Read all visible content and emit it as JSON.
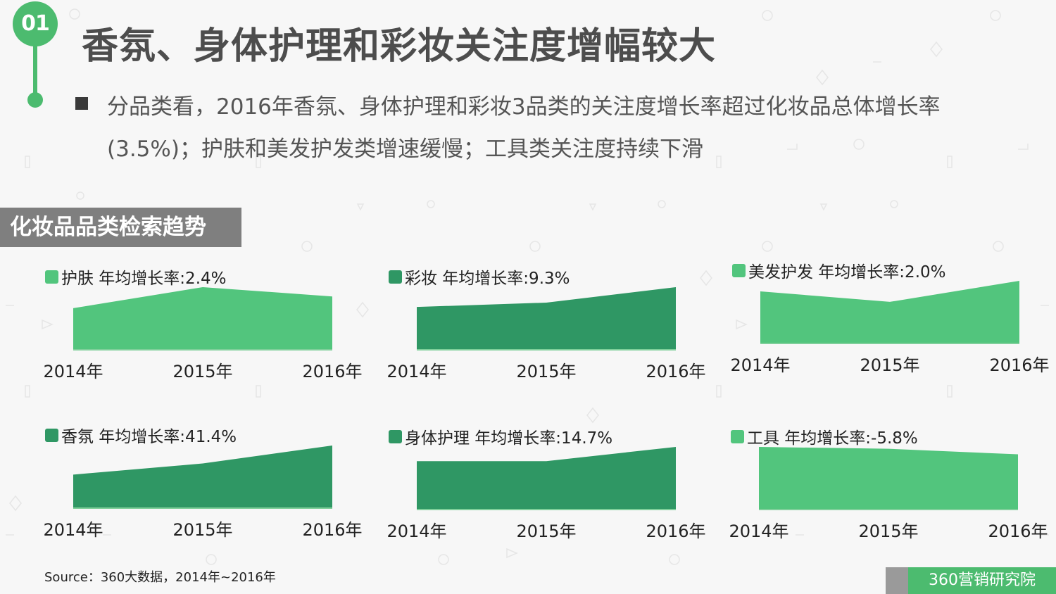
{
  "header": {
    "badge": "01",
    "title": "香氛、身体护理和彩妆关注度增幅较大",
    "description": "分品类看，2016年香氛、身体护理和彩妆3品类的关注度增长率超过化妆品总体增长率(3.5%)；护肤和美发护发类增速缓慢；工具类关注度持续下滑"
  },
  "section_title": "化妆品品类检索趋势",
  "footer": {
    "source": "Source：360大数据，2014年~2016年",
    "brand": "360营销研究院"
  },
  "colors": {
    "light_green": "#52c57d",
    "dark_green": "#2f9764",
    "accent": "#4cbb6f"
  },
  "chart_data": [
    {
      "type": "area",
      "legend": "护肤 年均增长率:2.4%",
      "categories": [
        "2014年",
        "2015年",
        "2016年"
      ],
      "values": [
        0.66,
        1.0,
        0.85
      ],
      "color": "#52c57d",
      "note": "relative search index, no y-axis shown"
    },
    {
      "type": "area",
      "legend": "彩妆 年均增长率:9.3%",
      "categories": [
        "2014年",
        "2015年",
        "2016年"
      ],
      "values": [
        0.68,
        0.75,
        1.0
      ],
      "color": "#2f9764"
    },
    {
      "type": "area",
      "legend": "美发护发 年均增长率:2.0%",
      "categories": [
        "2014年",
        "2015年",
        "2016年"
      ],
      "values": [
        0.83,
        0.66,
        1.0
      ],
      "color": "#52c57d"
    },
    {
      "type": "area",
      "legend": "香氛 年均增长率:41.4%",
      "categories": [
        "2014年",
        "2015年",
        "2016年"
      ],
      "values": [
        0.53,
        0.71,
        1.0
      ],
      "color": "#2f9764"
    },
    {
      "type": "area",
      "legend": "身体护理 年均增长率:14.7%",
      "categories": [
        "2014年",
        "2015年",
        "2016年"
      ],
      "values": [
        0.77,
        0.77,
        1.0
      ],
      "color": "#2f9764"
    },
    {
      "type": "area",
      "legend": "工具 年均增长率:-5.8%",
      "categories": [
        "2014年",
        "2015年",
        "2016年"
      ],
      "values": [
        1.0,
        0.97,
        0.88
      ],
      "color": "#52c57d"
    }
  ]
}
